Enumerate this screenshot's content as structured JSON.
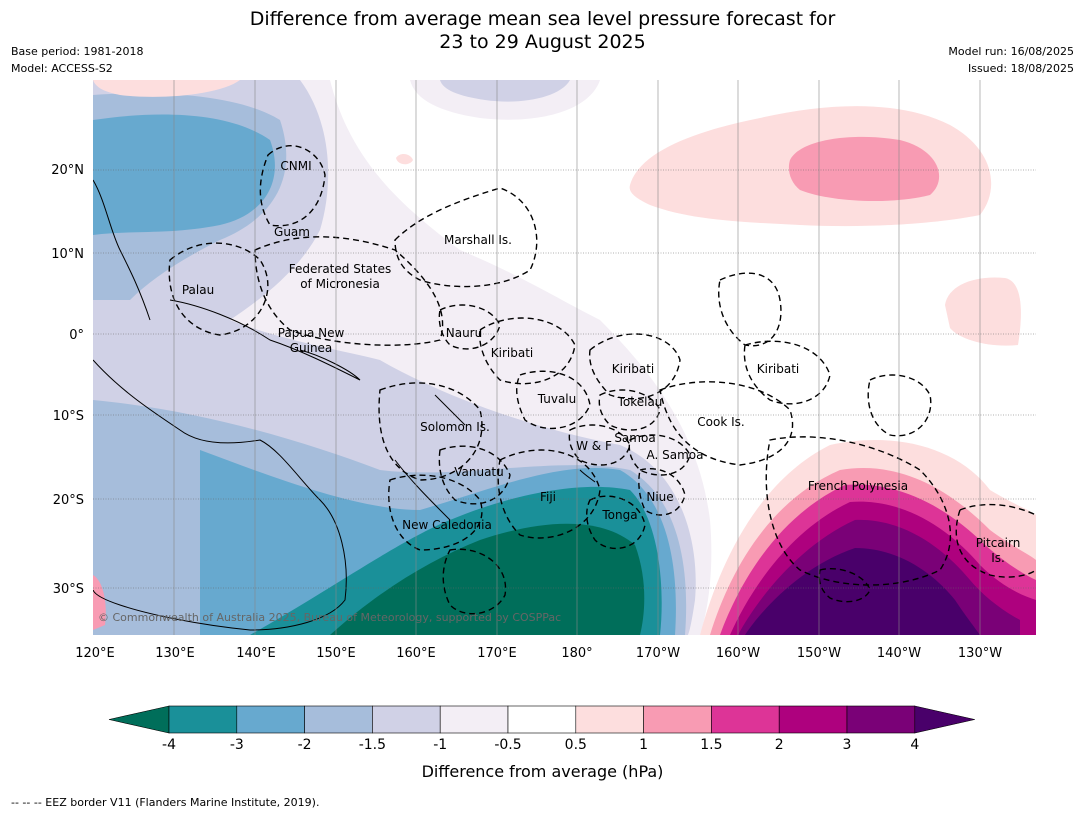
{
  "title_line1": "Difference from average mean sea level pressure forecast for",
  "title_line2": "23 to 29 August 2025",
  "base_period": "Base period: 1981-2018",
  "model": "Model: ACCESS-S2",
  "model_run": "Model run: 16/08/2025",
  "issued": "Issued: 18/08/2025",
  "copyright": "© Commonwealth of Australia 2025, Bureau of Meteorology, supported by COSPPac",
  "lat_labels": [
    "20°N",
    "10°N",
    "0°",
    "10°S",
    "20°S",
    "30°S"
  ],
  "lon_labels": [
    "120°E",
    "130°E",
    "140°E",
    "150°E",
    "160°E",
    "170°E",
    "180°",
    "170°W",
    "160°W",
    "150°W",
    "140°W",
    "130°W"
  ],
  "places": {
    "cnmi": "CNMI",
    "guam": "Guam",
    "marshall": "Marshall Is.",
    "fsm1": "Federated States",
    "fsm2": "of Micronesia",
    "palau": "Palau",
    "png1": "Papua New",
    "png2": "Guinea",
    "nauru": "Nauru",
    "kiribati_w": "Kiribati",
    "kiribati_c": "Kiribati",
    "kiribati_e": "Kiribati",
    "tuvalu": "Tuvalu",
    "tokelau": "Tokelau",
    "solomon": "Solomon Is.",
    "samoa": "Samoa",
    "wf": "W & F",
    "asamoa": "A. Samoa",
    "cook": "Cook Is.",
    "vanuatu": "Vanuatu",
    "fiji": "Fiji",
    "niue": "Niue",
    "tonga": "Tonga",
    "newcal": "New Caledonia",
    "frpoly": "French Polynesia",
    "pitcairn1": "Pitcairn",
    "pitcairn2": "Is."
  },
  "colorbar": {
    "title": "Difference from average (hPa)",
    "labels": [
      "-4",
      "-3",
      "-2",
      "-1.5",
      "-1",
      "-0.5",
      "0.5",
      "1",
      "1.5",
      "2",
      "3",
      "4"
    ],
    "colors": [
      "#006e5a",
      "#1a9099",
      "#67a9cf",
      "#a6bddb",
      "#d0d1e6",
      "#f3eef5",
      "#ffffff",
      "#fddede",
      "#f89bb3",
      "#dd3497",
      "#ae017e",
      "#7a0177",
      "#49006a"
    ]
  },
  "footnote": "-- -- -- EEZ border V11 (Flanders Marine Institute, 2019)."
}
